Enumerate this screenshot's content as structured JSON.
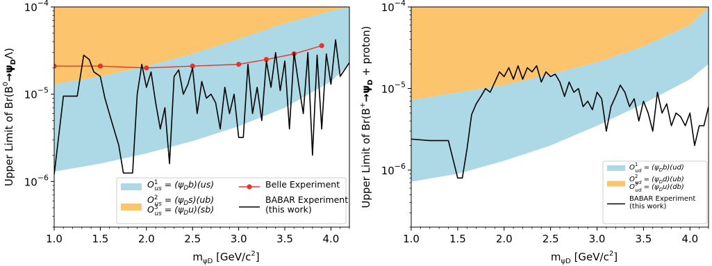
{
  "chart_data": [
    {
      "type": "line",
      "xlabel": "m",
      "xlabel_sub": "ψD",
      "xlabel_unit": " [GeV/c",
      "xlabel_sup": "2",
      "xlabel_end": "]",
      "ylabel_pre": "Upper Limit of Br(B",
      "ylabel_sup": "0",
      "ylabel_arrow": "→ψ",
      "ylabel_sub": "D",
      "ylabel_post": "Λ)",
      "xlim": [
        1.0,
        4.2
      ],
      "ylim": [
        3e-07,
        0.0001
      ],
      "yscale": "log",
      "x_ticks": [
        1.0,
        1.5,
        2.0,
        2.5,
        3.0,
        3.5,
        4.0
      ],
      "x_tick_labels": [
        "1.0",
        "1.5",
        "2.0",
        "2.5",
        "3.0",
        "3.5",
        "4.0"
      ],
      "y_ticks": [
        1e-06,
        1e-05,
        0.0001
      ],
      "y_tick_labels": [
        [
          "10",
          "−6"
        ],
        [
          "10",
          "−5"
        ],
        [
          "10",
          "−4"
        ]
      ],
      "bands": [
        {
          "name": "O¹us = (ψDb)(us)",
          "color": "#add8e6",
          "x": [
            1.0,
            1.5,
            2.0,
            2.5,
            3.0,
            3.5,
            4.0,
            4.2
          ],
          "lower": [
            1.3e-06,
            1.6e-06,
            2.1e-06,
            2.9e-06,
            4.3e-06,
            7e-06,
            1.4e-05,
            2.2e-05
          ],
          "upper": [
            1.3e-05,
            1.6e-05,
            2.1e-05,
            2.9e-05,
            4.3e-05,
            6.5e-05,
            9e-05,
            0.0001
          ]
        },
        {
          "name": "O²us = (ψDs)(ub), O³us = (ψDu)(sb)",
          "color": "#fbc46d",
          "x": [
            1.0,
            1.5,
            2.0,
            2.5,
            3.0,
            3.5,
            4.0,
            4.2
          ],
          "lower": [
            1.3e-05,
            1.6e-05,
            2.1e-05,
            2.9e-05,
            4.3e-05,
            6.5e-05,
            9e-05,
            0.0001
          ],
          "upper": [
            0.0001,
            0.0001,
            0.0001,
            0.0001,
            0.0001,
            0.0001,
            0.0001,
            0.0001
          ]
        }
      ],
      "series": [
        {
          "name": "Belle Experiment",
          "color": "#e8322b",
          "marker": "circle",
          "x": [
            1.0,
            1.5,
            2.0,
            2.5,
            3.0,
            3.3,
            3.6,
            3.9
          ],
          "y": [
            2.1e-05,
            2.1e-05,
            2e-05,
            2.1e-05,
            2.2e-05,
            2.5e-05,
            2.9e-05,
            3.6e-05
          ]
        },
        {
          "name": "BABAR Experiment (this work)",
          "color": "#000000",
          "x": [
            1.0,
            1.1,
            1.25,
            1.32,
            1.38,
            1.43,
            1.5,
            1.55,
            1.62,
            1.7,
            1.75,
            1.8,
            1.85,
            1.9,
            1.95,
            2.0,
            2.05,
            2.1,
            2.15,
            2.2,
            2.25,
            2.3,
            2.35,
            2.4,
            2.45,
            2.5,
            2.55,
            2.6,
            2.65,
            2.7,
            2.75,
            2.8,
            2.85,
            2.9,
            2.95,
            3.0,
            3.05,
            3.1,
            3.15,
            3.2,
            3.25,
            3.3,
            3.35,
            3.4,
            3.45,
            3.5,
            3.55,
            3.6,
            3.65,
            3.7,
            3.75,
            3.8,
            3.85,
            3.9,
            3.95,
            4.0,
            4.05,
            4.1,
            4.2
          ],
          "y": [
            1.2e-06,
            9.5e-06,
            9.5e-06,
            2.8e-05,
            2.5e-05,
            1.8e-05,
            1.6e-05,
            9e-06,
            5e-06,
            2.6e-06,
            1.25e-06,
            1.25e-06,
            1.25e-06,
            1e-05,
            2.2e-05,
            1.2e-05,
            1.8e-05,
            8e-06,
            4e-06,
            7e-06,
            1.6e-06,
            1.6e-05,
            1.9e-05,
            1e-05,
            1.3e-05,
            2e-05,
            6e-06,
            1.4e-05,
            9e-06,
            1e-05,
            8e-06,
            4e-06,
            1.2e-05,
            6e-06,
            1e-05,
            3.2e-06,
            3.2e-06,
            2.2e-05,
            6e-06,
            1.2e-05,
            5e-06,
            2.4e-05,
            1.2e-05,
            3e-05,
            1.1e-05,
            2.4e-05,
            4e-06,
            3e-05,
            1.3e-05,
            6e-06,
            3e-05,
            2e-06,
            2.8e-05,
            4e-06,
            2.9e-05,
            1.3e-05,
            4.2e-05,
            1.6e-05,
            2.3e-05
          ]
        }
      ],
      "legend": {
        "position": "lower-right",
        "items": [
          {
            "kind": "patch",
            "color": "#add8e6",
            "lines": [
              [
                "O",
                "1",
                "us",
                " = (ψ",
                "D",
                "b)(us)"
              ]
            ]
          },
          {
            "kind": "patch",
            "color": "#fbc46d",
            "lines": [
              [
                "O",
                "2",
                "us",
                " = (ψ",
                "D",
                "s)(ub)"
              ],
              [
                "O",
                "3",
                "us",
                " = (ψ",
                "D",
                "u)(sb)"
              ]
            ]
          },
          {
            "kind": "line-marker",
            "color": "#e8322b",
            "lines": [
              [
                "Belle Experiment"
              ]
            ]
          },
          {
            "kind": "line",
            "color": "#000000",
            "lines": [
              [
                "BABAR Experiment"
              ],
              [
                "(this work)"
              ]
            ]
          }
        ]
      }
    },
    {
      "type": "line",
      "xlabel": "m",
      "xlabel_sub": "ψD",
      "xlabel_unit": " [GeV/c",
      "xlabel_sup": "2",
      "xlabel_end": "]",
      "ylabel_pre": "Upper Limit of Br(B",
      "ylabel_sup": "+",
      "ylabel_arrow": "→ψ",
      "ylabel_sub": "D",
      "ylabel_post": " + proton)",
      "xlim": [
        1.0,
        4.2
      ],
      "ylim": [
        2e-07,
        0.0001
      ],
      "yscale": "log",
      "x_ticks": [
        1.0,
        1.5,
        2.0,
        2.5,
        3.0,
        3.5,
        4.0
      ],
      "x_tick_labels": [
        "1.0",
        "1.5",
        "2.0",
        "2.5",
        "3.0",
        "3.5",
        "4.0"
      ],
      "y_ticks": [
        1e-06,
        1e-05,
        0.0001
      ],
      "y_tick_labels": [
        [
          "10",
          "−6"
        ],
        [
          "10",
          "−5"
        ],
        [
          "10",
          "−4"
        ]
      ],
      "bands": [
        {
          "name": "O¹ud = (ψDb)(ud)",
          "color": "#add8e6",
          "x": [
            1.0,
            1.5,
            2.0,
            2.5,
            3.0,
            3.5,
            4.0,
            4.2
          ],
          "lower": [
            7.2e-07,
            9e-07,
            1.3e-06,
            2e-06,
            3.5e-06,
            6.5e-06,
            1.3e-05,
            2e-05
          ],
          "upper": [
            7.2e-06,
            9e-06,
            1.1e-05,
            1.5e-05,
            2.1e-05,
            3.3e-05,
            6e-05,
            0.0001
          ]
        },
        {
          "name": "O²ud = (ψDd)(ub), O³ud = (ψDu)(db)",
          "color": "#fbc46d",
          "x": [
            1.0,
            1.5,
            2.0,
            2.5,
            3.0,
            3.5,
            4.0,
            4.2
          ],
          "lower": [
            7.2e-06,
            9e-06,
            1.1e-05,
            1.5e-05,
            2.1e-05,
            3.3e-05,
            6e-05,
            0.0001
          ],
          "upper": [
            0.0001,
            0.0001,
            0.0001,
            0.0001,
            0.0001,
            0.0001,
            0.0001,
            0.0001
          ]
        }
      ],
      "series": [
        {
          "name": "BABAR Experiment (this work)",
          "color": "#000000",
          "x": [
            1.0,
            1.2,
            1.4,
            1.5,
            1.55,
            1.6,
            1.65,
            1.7,
            1.75,
            1.8,
            1.85,
            1.9,
            1.95,
            2.0,
            2.05,
            2.1,
            2.15,
            2.2,
            2.25,
            2.3,
            2.35,
            2.4,
            2.45,
            2.5,
            2.55,
            2.6,
            2.65,
            2.7,
            2.75,
            2.8,
            2.85,
            2.9,
            2.95,
            3.0,
            3.05,
            3.1,
            3.15,
            3.2,
            3.25,
            3.3,
            3.35,
            3.4,
            3.45,
            3.5,
            3.55,
            3.6,
            3.65,
            3.7,
            3.75,
            3.8,
            3.85,
            3.9,
            3.95,
            4.0,
            4.05,
            4.1,
            4.15,
            4.2
          ],
          "y": [
            2.4e-06,
            2.3e-06,
            2.3e-06,
            8e-07,
            8e-07,
            1.8e-06,
            4.8e-06,
            6.5e-06,
            8e-06,
            1e-05,
            9e-06,
            1.2e-05,
            1.6e-05,
            1.4e-05,
            1.8e-05,
            1.3e-05,
            1.9e-05,
            1.3e-05,
            1.8e-05,
            1.6e-05,
            1.9e-05,
            1.2e-05,
            1.6e-05,
            1.4e-05,
            1.5e-05,
            1.2e-05,
            8e-06,
            1.2e-05,
            9e-06,
            1e-05,
            6e-06,
            7e-06,
            5.5e-06,
            9e-06,
            7.5e-06,
            3e-06,
            6e-06,
            8e-06,
            1.1e-05,
            9e-06,
            6e-06,
            7.5e-06,
            4e-06,
            7e-06,
            5e-06,
            3e-06,
            9e-06,
            5e-06,
            6.5e-06,
            3.5e-06,
            5e-06,
            4.5e-06,
            3.5e-06,
            5e-06,
            2e-06,
            3.5e-06,
            3.5e-06,
            6e-06
          ]
        }
      ],
      "legend": {
        "position": "lower-right",
        "items": [
          {
            "kind": "patch",
            "color": "#add8e6",
            "lines": [
              [
                "O",
                "1",
                "ud",
                " = (ψ",
                "D",
                "b)(ud)"
              ]
            ]
          },
          {
            "kind": "patch",
            "color": "#fbc46d",
            "lines": [
              [
                "O",
                "2",
                "ud",
                " = (ψ",
                "D",
                "d)(ub)"
              ],
              [
                "O",
                "3",
                "ud",
                " = (ψ",
                "D",
                "u)(db)"
              ]
            ]
          },
          {
            "kind": "line",
            "color": "#000000",
            "lines": [
              [
                "BABAR Experiment"
              ],
              [
                "(this work)"
              ]
            ]
          }
        ]
      }
    }
  ]
}
